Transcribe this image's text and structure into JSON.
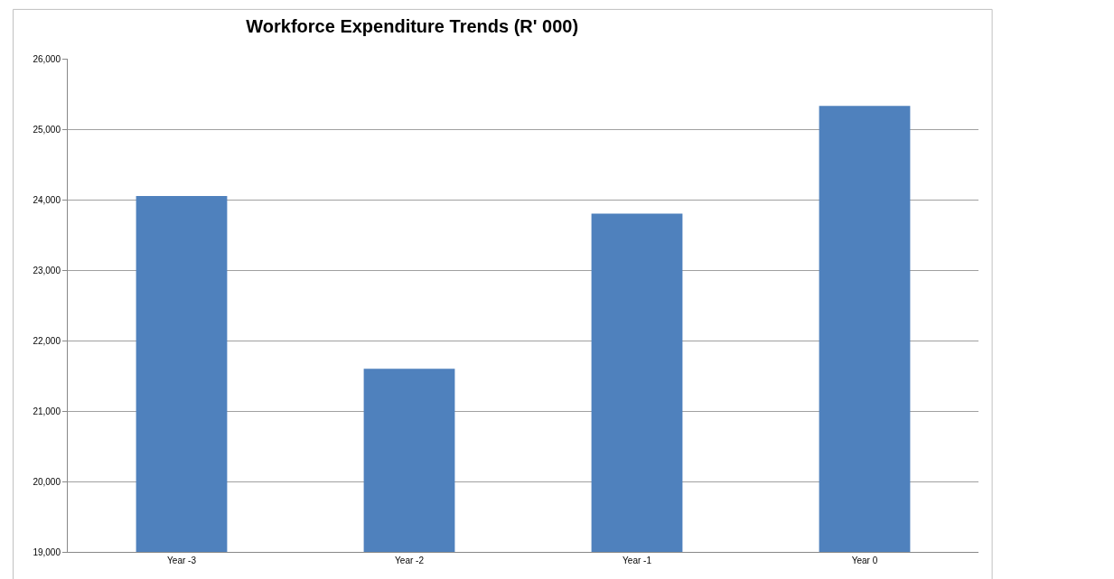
{
  "chart_data": {
    "type": "bar",
    "title": "Workforce Expenditure Trends (R' 000)",
    "categories": [
      "Year -3",
      "Year -2",
      "Year -1",
      "Year 0"
    ],
    "values": [
      24050,
      21600,
      23800,
      25330
    ],
    "color": "#4f81bd",
    "ylim": [
      19000,
      26000
    ],
    "yticks": [
      {
        "value": 19000,
        "label": "19,000"
      },
      {
        "value": 20000,
        "label": "20,000"
      },
      {
        "value": 21000,
        "label": "21,000"
      },
      {
        "value": 22000,
        "label": "22,000"
      },
      {
        "value": 23000,
        "label": "23,000"
      },
      {
        "value": 24000,
        "label": "24,000"
      },
      {
        "value": 25000,
        "label": "25,000"
      },
      {
        "value": 26000,
        "label": "26,000"
      }
    ],
    "grid": "y"
  }
}
